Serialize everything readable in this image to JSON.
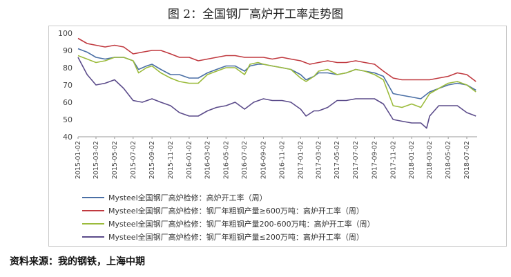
{
  "figure_title": "图 2：全国钢厂高炉开工率走势图",
  "source_note": "资料来源：我的钢铁，上海中期",
  "chart_data": {
    "type": "line",
    "title": "图 2：全国钢厂高炉开工率走势图",
    "xlabel": "",
    "ylabel": "",
    "ylim": [
      40,
      100
    ],
    "yticks": [
      40,
      50,
      60,
      70,
      80,
      90,
      100
    ],
    "grid": false,
    "legend_position": "bottom",
    "x_tick_labels": [
      "2015-01-02",
      "2015-03-02",
      "2015-05-02",
      "2015-07-02",
      "2015-09-02",
      "2015-11-02",
      "2016-01-02",
      "2016-03-02",
      "2016-05-02",
      "2016-07-02",
      "2016-09-02",
      "2016-11-02",
      "2017-01-02",
      "2017-03-02",
      "2017-05-02",
      "2017-07-02",
      "2017-09-02",
      "2017-11-02",
      "2018-01-02",
      "2018-03-02",
      "2018-05-02",
      "2018-07-02"
    ],
    "series": [
      {
        "name": "Mysteel全国钢厂高炉检修：高炉开工率（周）",
        "color": "#4a6fa5",
        "points": [
          [
            "2015-01-02",
            91
          ],
          [
            "2015-02-01",
            89
          ],
          [
            "2015-03-02",
            86
          ],
          [
            "2015-04-01",
            85
          ],
          [
            "2015-05-02",
            86
          ],
          [
            "2015-06-01",
            86
          ],
          [
            "2015-07-02",
            84
          ],
          [
            "2015-07-20",
            79
          ],
          [
            "2015-08-15",
            81
          ],
          [
            "2015-09-02",
            82
          ],
          [
            "2015-10-01",
            79
          ],
          [
            "2015-11-02",
            76
          ],
          [
            "2015-12-01",
            76
          ],
          [
            "2016-01-02",
            74
          ],
          [
            "2016-02-01",
            74
          ],
          [
            "2016-03-02",
            77
          ],
          [
            "2016-04-01",
            79
          ],
          [
            "2016-05-02",
            81
          ],
          [
            "2016-06-01",
            81
          ],
          [
            "2016-07-02",
            78
          ],
          [
            "2016-07-20",
            81
          ],
          [
            "2016-08-15",
            82
          ],
          [
            "2016-09-02",
            82
          ],
          [
            "2016-10-01",
            81
          ],
          [
            "2016-11-02",
            80
          ],
          [
            "2016-12-01",
            79
          ],
          [
            "2017-01-02",
            76
          ],
          [
            "2017-01-20",
            73
          ],
          [
            "2017-02-15",
            75
          ],
          [
            "2017-03-02",
            77
          ],
          [
            "2017-04-01",
            77
          ],
          [
            "2017-05-02",
            76
          ],
          [
            "2017-06-01",
            77
          ],
          [
            "2017-07-02",
            79
          ],
          [
            "2017-08-01",
            78
          ],
          [
            "2017-09-02",
            77
          ],
          [
            "2017-10-01",
            75
          ],
          [
            "2017-11-02",
            65
          ],
          [
            "2017-12-01",
            64
          ],
          [
            "2018-01-02",
            63
          ],
          [
            "2018-02-01",
            62
          ],
          [
            "2018-03-02",
            66
          ],
          [
            "2018-04-01",
            68
          ],
          [
            "2018-05-02",
            70
          ],
          [
            "2018-06-01",
            71
          ],
          [
            "2018-07-02",
            70
          ],
          [
            "2018-08-01",
            67
          ]
        ]
      },
      {
        "name": "Mysteel全国钢厂高炉检修：钢厂年粗钢产量≥600万吨：高炉开工率（周）",
        "color": "#c0393f",
        "points": [
          [
            "2015-01-02",
            97
          ],
          [
            "2015-02-01",
            94
          ],
          [
            "2015-03-02",
            93
          ],
          [
            "2015-04-01",
            92
          ],
          [
            "2015-05-02",
            93
          ],
          [
            "2015-06-01",
            92
          ],
          [
            "2015-07-02",
            88
          ],
          [
            "2015-08-01",
            89
          ],
          [
            "2015-09-02",
            90
          ],
          [
            "2015-10-01",
            90
          ],
          [
            "2015-11-02",
            88
          ],
          [
            "2015-12-01",
            86
          ],
          [
            "2016-01-02",
            86
          ],
          [
            "2016-02-01",
            84
          ],
          [
            "2016-03-02",
            85
          ],
          [
            "2016-04-01",
            86
          ],
          [
            "2016-05-02",
            87
          ],
          [
            "2016-06-01",
            87
          ],
          [
            "2016-07-02",
            86
          ],
          [
            "2016-08-01",
            86
          ],
          [
            "2016-09-02",
            86
          ],
          [
            "2016-10-01",
            85
          ],
          [
            "2016-11-02",
            86
          ],
          [
            "2016-12-01",
            85
          ],
          [
            "2017-01-02",
            84
          ],
          [
            "2017-02-01",
            82
          ],
          [
            "2017-03-02",
            83
          ],
          [
            "2017-04-01",
            84
          ],
          [
            "2017-05-02",
            83
          ],
          [
            "2017-06-01",
            83
          ],
          [
            "2017-07-02",
            84
          ],
          [
            "2017-08-01",
            83
          ],
          [
            "2017-09-02",
            82
          ],
          [
            "2017-10-01",
            78
          ],
          [
            "2017-11-02",
            74
          ],
          [
            "2017-12-01",
            73
          ],
          [
            "2018-01-02",
            73
          ],
          [
            "2018-02-01",
            73
          ],
          [
            "2018-03-02",
            73
          ],
          [
            "2018-04-01",
            74
          ],
          [
            "2018-05-02",
            75
          ],
          [
            "2018-06-01",
            77
          ],
          [
            "2018-07-02",
            76
          ],
          [
            "2018-08-01",
            72
          ]
        ]
      },
      {
        "name": "Mysteel全国钢厂高炉检修：钢厂年粗钢产量200-600万吨：高炉开工率（周）",
        "color": "#9bbb3b",
        "points": [
          [
            "2015-01-02",
            87
          ],
          [
            "2015-02-01",
            85
          ],
          [
            "2015-03-02",
            83
          ],
          [
            "2015-04-01",
            84
          ],
          [
            "2015-05-02",
            86
          ],
          [
            "2015-06-01",
            86
          ],
          [
            "2015-07-02",
            84
          ],
          [
            "2015-07-20",
            77
          ],
          [
            "2015-08-15",
            80
          ],
          [
            "2015-09-02",
            81
          ],
          [
            "2015-10-01",
            77
          ],
          [
            "2015-11-02",
            74
          ],
          [
            "2015-12-01",
            72
          ],
          [
            "2016-01-02",
            71
          ],
          [
            "2016-02-01",
            71
          ],
          [
            "2016-03-02",
            76
          ],
          [
            "2016-04-01",
            78
          ],
          [
            "2016-05-02",
            80
          ],
          [
            "2016-06-01",
            80
          ],
          [
            "2016-07-02",
            76
          ],
          [
            "2016-07-20",
            82
          ],
          [
            "2016-08-15",
            83
          ],
          [
            "2016-09-02",
            82
          ],
          [
            "2016-10-01",
            81
          ],
          [
            "2016-11-02",
            80
          ],
          [
            "2016-12-01",
            79
          ],
          [
            "2017-01-02",
            74
          ],
          [
            "2017-01-20",
            72
          ],
          [
            "2017-02-15",
            75
          ],
          [
            "2017-03-02",
            78
          ],
          [
            "2017-04-01",
            79
          ],
          [
            "2017-05-02",
            76
          ],
          [
            "2017-06-01",
            77
          ],
          [
            "2017-07-02",
            79
          ],
          [
            "2017-08-01",
            78
          ],
          [
            "2017-09-02",
            76
          ],
          [
            "2017-10-01",
            73
          ],
          [
            "2017-11-02",
            58
          ],
          [
            "2017-12-01",
            57
          ],
          [
            "2018-01-02",
            59
          ],
          [
            "2018-02-01",
            57
          ],
          [
            "2018-03-02",
            65
          ],
          [
            "2018-04-01",
            68
          ],
          [
            "2018-05-02",
            71
          ],
          [
            "2018-06-01",
            72
          ],
          [
            "2018-07-02",
            70
          ],
          [
            "2018-08-01",
            66
          ]
        ]
      },
      {
        "name": "Mysteel全国钢厂高炉检修：钢厂年粗钢产量≤200万吨：高炉开工率（周）",
        "color": "#5b4b8a",
        "points": [
          [
            "2015-01-02",
            86
          ],
          [
            "2015-02-01",
            76
          ],
          [
            "2015-03-02",
            70
          ],
          [
            "2015-04-01",
            71
          ],
          [
            "2015-05-02",
            73
          ],
          [
            "2015-06-01",
            68
          ],
          [
            "2015-07-02",
            61
          ],
          [
            "2015-08-01",
            60
          ],
          [
            "2015-09-02",
            62
          ],
          [
            "2015-10-01",
            60
          ],
          [
            "2015-11-02",
            58
          ],
          [
            "2015-12-01",
            54
          ],
          [
            "2016-01-02",
            52
          ],
          [
            "2016-02-01",
            52
          ],
          [
            "2016-03-02",
            55
          ],
          [
            "2016-04-01",
            57
          ],
          [
            "2016-05-02",
            58
          ],
          [
            "2016-06-01",
            60
          ],
          [
            "2016-07-02",
            56
          ],
          [
            "2016-08-01",
            60
          ],
          [
            "2016-09-02",
            62
          ],
          [
            "2016-10-01",
            61
          ],
          [
            "2016-11-02",
            61
          ],
          [
            "2016-12-01",
            60
          ],
          [
            "2017-01-02",
            56
          ],
          [
            "2017-01-20",
            52
          ],
          [
            "2017-02-15",
            55
          ],
          [
            "2017-03-02",
            55
          ],
          [
            "2017-04-01",
            57
          ],
          [
            "2017-05-02",
            61
          ],
          [
            "2017-06-01",
            61
          ],
          [
            "2017-07-02",
            62
          ],
          [
            "2017-08-01",
            62
          ],
          [
            "2017-09-02",
            62
          ],
          [
            "2017-10-01",
            59
          ],
          [
            "2017-11-02",
            50
          ],
          [
            "2017-12-01",
            49
          ],
          [
            "2018-01-02",
            48
          ],
          [
            "2018-02-01",
            48
          ],
          [
            "2018-02-20",
            45
          ],
          [
            "2018-03-02",
            52
          ],
          [
            "2018-04-01",
            58
          ],
          [
            "2018-05-02",
            58
          ],
          [
            "2018-06-01",
            58
          ],
          [
            "2018-07-02",
            54
          ],
          [
            "2018-08-01",
            52
          ]
        ]
      }
    ]
  }
}
